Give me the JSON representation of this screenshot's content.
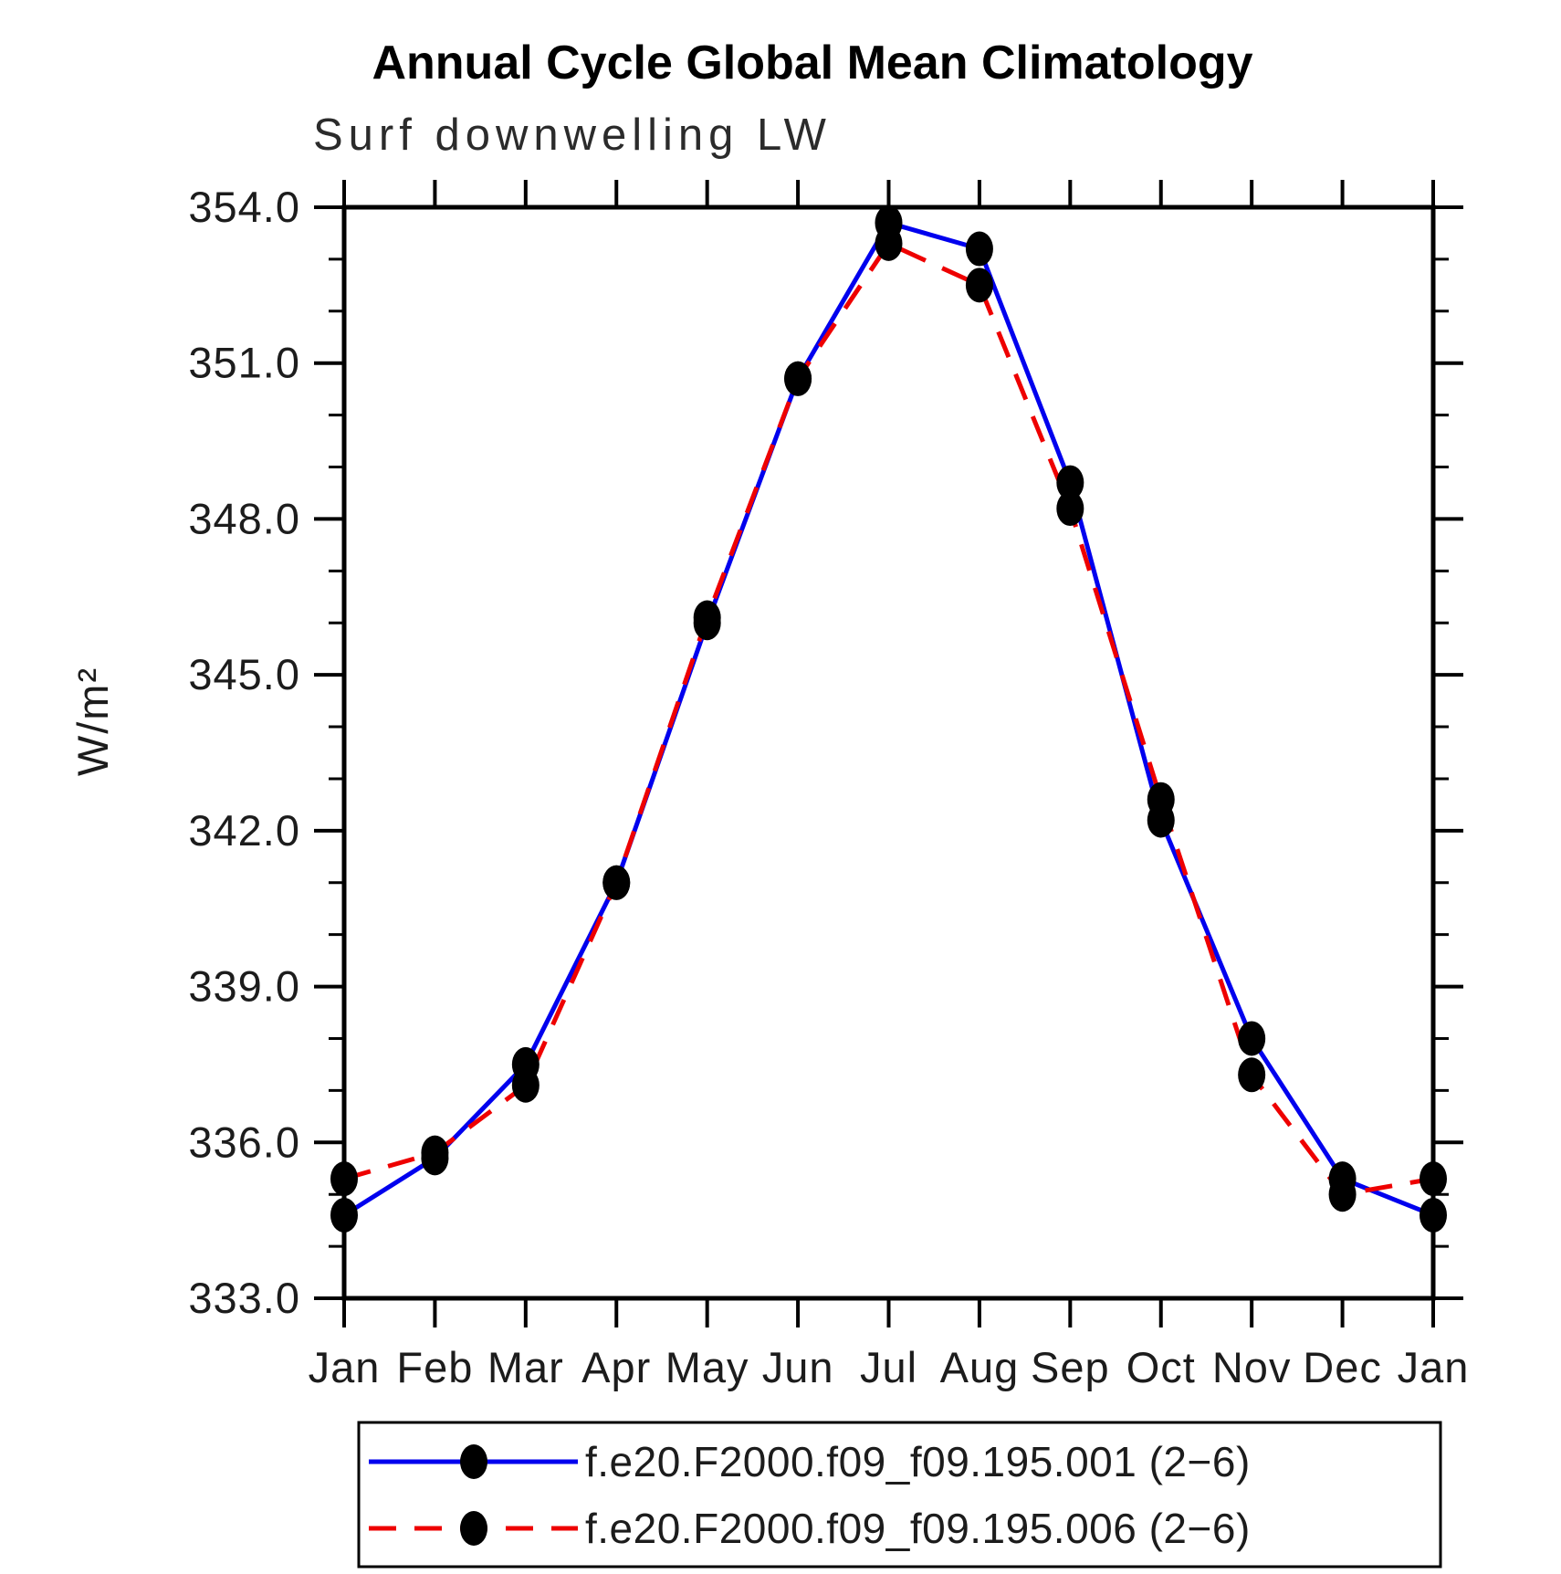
{
  "chart_data": {
    "type": "line",
    "title": "Annual Cycle Global Mean Climatology",
    "subtitle": "Surf downwelling LW",
    "ylabel": "W/m²",
    "x_categories": [
      "Jan",
      "Feb",
      "Mar",
      "Apr",
      "May",
      "Jun",
      "Jul",
      "Aug",
      "Sep",
      "Oct",
      "Nov",
      "Dec",
      "Jan"
    ],
    "ylim": [
      333.0,
      354.0
    ],
    "y_tick_labels": [
      "333.0",
      "336.0",
      "339.0",
      "342.0",
      "345.0",
      "348.0",
      "351.0",
      "354.0"
    ],
    "y_major_ticks": [
      333,
      336,
      339,
      342,
      345,
      348,
      351,
      354
    ],
    "y_minor_step": 1.0,
    "grid": false,
    "legend_position": "bottom",
    "axis_color": "#000000",
    "marker_color": "#000000",
    "series": [
      {
        "name": "f.e20.F2000.f09_f09.195.001 (2−6)",
        "color": "#0000ee",
        "style": "solid",
        "marker": "filled-circle",
        "values": [
          334.6,
          335.7,
          337.5,
          341.0,
          346.0,
          350.7,
          353.7,
          353.2,
          348.7,
          342.2,
          338.0,
          335.3,
          334.6
        ]
      },
      {
        "name": "f.e20.F2000.f09_f09.195.006 (2−6)",
        "color": "#ee0000",
        "style": "dashed",
        "marker": "filled-circle",
        "values": [
          335.3,
          335.8,
          337.1,
          341.0,
          346.1,
          350.7,
          353.3,
          352.5,
          348.2,
          342.6,
          337.3,
          335.0,
          335.3
        ]
      }
    ]
  }
}
